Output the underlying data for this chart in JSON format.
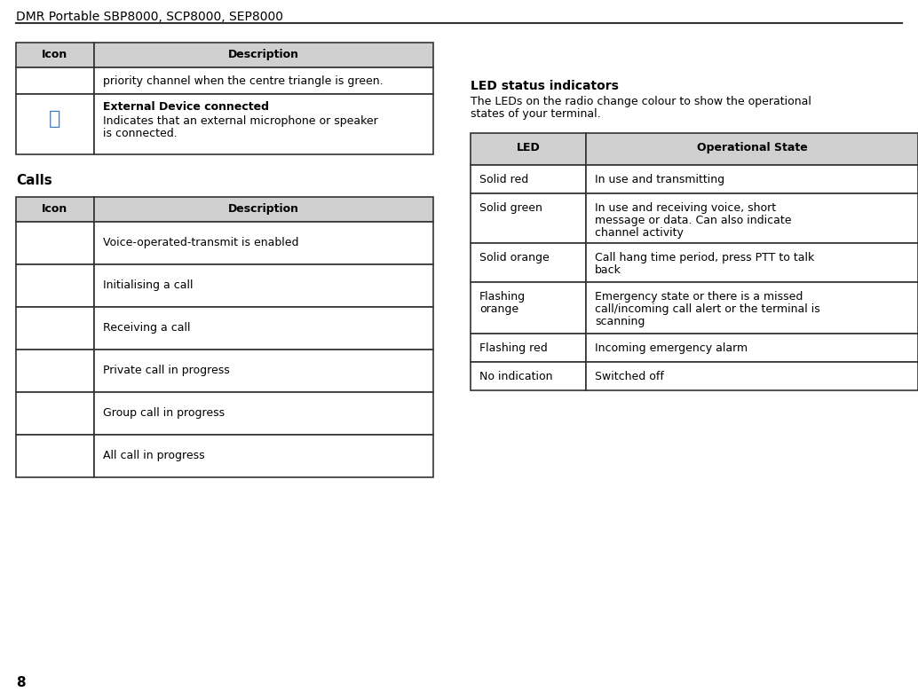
{
  "title": "DMR Portable SBP8000, SCP8000, SEP8000",
  "page_number": "8",
  "bg_color": "#ffffff",
  "header_bg": "#d0d0d0",
  "border_color": "#333333",
  "table1_headers": [
    "Icon",
    "Description"
  ],
  "table2_headers": [
    "Icon",
    "Description"
  ],
  "led_table_headers": [
    "LED",
    "Operational State"
  ],
  "calls_label": "Calls",
  "led_title": "LED status indicators",
  "led_subtitle1": "The LEDs on the radio change colour to show the operational",
  "led_subtitle2": "states of your terminal.",
  "t1_row1_desc": "priority channel when the centre triangle is green.",
  "t1_row2_title": "External Device connected",
  "t1_row2_line1": "Indicates that an external microphone or speaker",
  "t1_row2_line2": "is connected.",
  "calls_rows_desc": [
    "Voice-operated-transmit is enabled",
    "Initialising a call",
    "Receiving a call",
    "Private call in progress",
    "Group call in progress",
    "All call in progress"
  ],
  "led_table_rows": [
    [
      "Solid red",
      "In use and transmitting"
    ],
    [
      "Solid green",
      "In use and receiving voice, short\nmessage or data. Can also indicate\nchannel activity"
    ],
    [
      "Solid orange",
      "Call hang time period, press PTT to talk\nback"
    ],
    [
      "Flashing\norange",
      "Emergency state or there is a missed\ncall/incoming call alert or the terminal is\nscanning"
    ],
    [
      "Flashing red",
      "Incoming emergency alarm"
    ],
    [
      "No indication",
      "Switched off"
    ]
  ],
  "led_row_heights": [
    32,
    56,
    44,
    58,
    32,
    32
  ]
}
